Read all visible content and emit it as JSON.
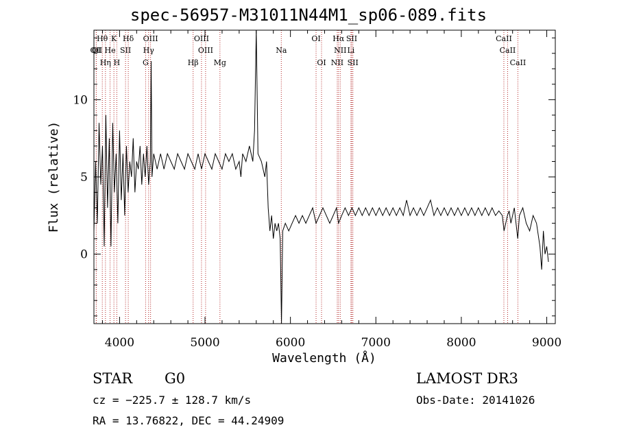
{
  "chart_data": {
    "type": "line",
    "title": "spec-56957-M31011N44M1_sp06-089.fits",
    "xlabel": "Wavelength (Å)",
    "ylabel": "Flux (relative)",
    "xlim": [
      3700,
      9100
    ],
    "ylim": [
      -4.5,
      14.5
    ],
    "xticks": [
      "4000",
      "5000",
      "6000",
      "7000",
      "8000",
      "9000"
    ],
    "yticks": [
      "0",
      "5",
      "10"
    ],
    "xtick_values": [
      4000,
      5000,
      6000,
      7000,
      8000,
      9000
    ],
    "ytick_values": [
      0,
      5,
      10
    ],
    "series": [
      {
        "name": "flux",
        "points": [
          [
            3700,
            1.5
          ],
          [
            3720,
            6.0
          ],
          [
            3740,
            2.0
          ],
          [
            3760,
            8.5
          ],
          [
            3780,
            4.5
          ],
          [
            3800,
            7.0
          ],
          [
            3820,
            0.5
          ],
          [
            3840,
            9.0
          ],
          [
            3860,
            3.0
          ],
          [
            3880,
            7.5
          ],
          [
            3900,
            0.5
          ],
          [
            3920,
            8.5
          ],
          [
            3940,
            4.0
          ],
          [
            3960,
            6.5
          ],
          [
            3980,
            2.0
          ],
          [
            4000,
            8.0
          ],
          [
            4020,
            3.5
          ],
          [
            4040,
            6.5
          ],
          [
            4060,
            2.5
          ],
          [
            4080,
            7.0
          ],
          [
            4100,
            4.0
          ],
          [
            4120,
            6.0
          ],
          [
            4140,
            5.0
          ],
          [
            4160,
            7.5
          ],
          [
            4180,
            4.0
          ],
          [
            4200,
            6.0
          ],
          [
            4220,
            5.5
          ],
          [
            4240,
            7.0
          ],
          [
            4260,
            4.5
          ],
          [
            4280,
            6.5
          ],
          [
            4300,
            5.0
          ],
          [
            4320,
            7.0
          ],
          [
            4340,
            4.5
          ],
          [
            4360,
            6.0
          ],
          [
            4370,
            12.5
          ],
          [
            4380,
            5.0
          ],
          [
            4400,
            6.5
          ],
          [
            4440,
            5.5
          ],
          [
            4480,
            6.5
          ],
          [
            4520,
            5.5
          ],
          [
            4560,
            6.5
          ],
          [
            4600,
            6.0
          ],
          [
            4640,
            5.5
          ],
          [
            4680,
            6.5
          ],
          [
            4720,
            6.0
          ],
          [
            4760,
            5.5
          ],
          [
            4800,
            6.5
          ],
          [
            4840,
            6.0
          ],
          [
            4880,
            5.5
          ],
          [
            4920,
            6.5
          ],
          [
            4960,
            5.5
          ],
          [
            5000,
            6.5
          ],
          [
            5040,
            6.0
          ],
          [
            5080,
            5.5
          ],
          [
            5120,
            6.5
          ],
          [
            5160,
            6.0
          ],
          [
            5200,
            5.5
          ],
          [
            5240,
            6.5
          ],
          [
            5280,
            6.0
          ],
          [
            5320,
            6.5
          ],
          [
            5360,
            5.5
          ],
          [
            5400,
            6.0
          ],
          [
            5420,
            5.0
          ],
          [
            5440,
            6.5
          ],
          [
            5480,
            6.0
          ],
          [
            5520,
            7.0
          ],
          [
            5560,
            6.0
          ],
          [
            5580,
            8.0
          ],
          [
            5600,
            14.5
          ],
          [
            5620,
            6.5
          ],
          [
            5660,
            6.0
          ],
          [
            5700,
            5.0
          ],
          [
            5720,
            6.0
          ],
          [
            5740,
            3.0
          ],
          [
            5760,
            1.5
          ],
          [
            5780,
            2.5
          ],
          [
            5800,
            1.0
          ],
          [
            5820,
            2.0
          ],
          [
            5840,
            1.5
          ],
          [
            5860,
            2.0
          ],
          [
            5880,
            1.0
          ],
          [
            5895,
            -4.5
          ],
          [
            5910,
            1.5
          ],
          [
            5940,
            2.0
          ],
          [
            5980,
            1.5
          ],
          [
            6020,
            2.0
          ],
          [
            6060,
            2.5
          ],
          [
            6100,
            2.0
          ],
          [
            6140,
            2.5
          ],
          [
            6180,
            2.0
          ],
          [
            6220,
            2.5
          ],
          [
            6260,
            3.0
          ],
          [
            6300,
            2.0
          ],
          [
            6340,
            2.5
          ],
          [
            6380,
            3.0
          ],
          [
            6420,
            2.5
          ],
          [
            6460,
            2.0
          ],
          [
            6500,
            2.5
          ],
          [
            6540,
            3.0
          ],
          [
            6563,
            2.0
          ],
          [
            6600,
            2.5
          ],
          [
            6640,
            3.0
          ],
          [
            6680,
            2.5
          ],
          [
            6720,
            3.0
          ],
          [
            6760,
            2.5
          ],
          [
            6800,
            3.0
          ],
          [
            6840,
            2.5
          ],
          [
            6880,
            3.0
          ],
          [
            6920,
            2.5
          ],
          [
            6960,
            3.0
          ],
          [
            7000,
            2.5
          ],
          [
            7040,
            3.0
          ],
          [
            7080,
            2.5
          ],
          [
            7120,
            3.0
          ],
          [
            7160,
            2.5
          ],
          [
            7200,
            3.0
          ],
          [
            7240,
            2.5
          ],
          [
            7280,
            3.0
          ],
          [
            7320,
            2.5
          ],
          [
            7360,
            3.5
          ],
          [
            7400,
            2.5
          ],
          [
            7440,
            3.0
          ],
          [
            7480,
            2.5
          ],
          [
            7520,
            3.0
          ],
          [
            7560,
            2.5
          ],
          [
            7600,
            3.0
          ],
          [
            7640,
            3.5
          ],
          [
            7680,
            2.5
          ],
          [
            7720,
            3.0
          ],
          [
            7760,
            2.5
          ],
          [
            7800,
            3.0
          ],
          [
            7840,
            2.5
          ],
          [
            7880,
            3.0
          ],
          [
            7920,
            2.5
          ],
          [
            7960,
            3.0
          ],
          [
            8000,
            2.5
          ],
          [
            8040,
            3.0
          ],
          [
            8080,
            2.5
          ],
          [
            8120,
            3.0
          ],
          [
            8160,
            2.5
          ],
          [
            8200,
            3.0
          ],
          [
            8240,
            2.5
          ],
          [
            8280,
            3.0
          ],
          [
            8320,
            2.5
          ],
          [
            8360,
            3.0
          ],
          [
            8400,
            2.5
          ],
          [
            8440,
            2.8
          ],
          [
            8480,
            2.5
          ],
          [
            8500,
            1.5
          ],
          [
            8520,
            2.0
          ],
          [
            8540,
            2.5
          ],
          [
            8560,
            2.8
          ],
          [
            8580,
            2.0
          ],
          [
            8600,
            2.5
          ],
          [
            8620,
            3.0
          ],
          [
            8640,
            2.0
          ],
          [
            8660,
            1.0
          ],
          [
            8680,
            2.5
          ],
          [
            8720,
            3.0
          ],
          [
            8760,
            2.0
          ],
          [
            8800,
            1.5
          ],
          [
            8840,
            2.5
          ],
          [
            8880,
            2.0
          ],
          [
            8920,
            0.5
          ],
          [
            8940,
            -1.0
          ],
          [
            8960,
            1.5
          ],
          [
            8980,
            0.0
          ],
          [
            9000,
            0.5
          ],
          [
            9020,
            -0.5
          ]
        ]
      }
    ],
    "annotations": [
      {
        "label": "Hθ",
        "wavelength": 3798,
        "row": 1
      },
      {
        "label": "OII",
        "wavelength": 3727,
        "row": 2
      },
      {
        "label": "K",
        "wavelength": 3934,
        "row": 1
      },
      {
        "label": "Hδ",
        "wavelength": 4102,
        "row": 1
      },
      {
        "label": "OIII",
        "wavelength": 4363,
        "row": 1
      },
      {
        "label": "OIII",
        "wavelength": 4959,
        "row": 1
      },
      {
        "label": "OI",
        "wavelength": 6300,
        "row": 1
      },
      {
        "label": "Hα",
        "wavelength": 6563,
        "row": 1
      },
      {
        "label": "SII",
        "wavelength": 6717,
        "row": 1
      },
      {
        "label": "CaII",
        "wavelength": 8498,
        "row": 1
      },
      {
        "label": "OI",
        "wavelength": 3728,
        "row": 2
      },
      {
        "label": "He",
        "wavelength": 3889,
        "row": 2
      },
      {
        "label": "SII",
        "wavelength": 4070,
        "row": 2
      },
      {
        "label": "Hγ",
        "wavelength": 4340,
        "row": 2
      },
      {
        "label": "OIII",
        "wavelength": 5007,
        "row": 2
      },
      {
        "label": "Na",
        "wavelength": 5893,
        "row": 2
      },
      {
        "label": "NII",
        "wavelength": 6583,
        "row": 2
      },
      {
        "label": "Li",
        "wavelength": 6708,
        "row": 2
      },
      {
        "label": "CaII",
        "wavelength": 8542,
        "row": 2
      },
      {
        "label": "Hη",
        "wavelength": 3835,
        "row": 3
      },
      {
        "label": "H",
        "wavelength": 3968,
        "row": 3
      },
      {
        "label": "G",
        "wavelength": 4305,
        "row": 3
      },
      {
        "label": "Hβ",
        "wavelength": 4861,
        "row": 3
      },
      {
        "label": "Mg",
        "wavelength": 5175,
        "row": 3
      },
      {
        "label": "OI",
        "wavelength": 6364,
        "row": 3
      },
      {
        "label": "NII",
        "wavelength": 6548,
        "row": 3
      },
      {
        "label": "SII",
        "wavelength": 6731,
        "row": 3
      },
      {
        "label": "CaII",
        "wavelength": 8662,
        "row": 3
      }
    ],
    "line_color": "#000000",
    "marker_color": "#b22222"
  },
  "info": {
    "class": "STAR",
    "subclass": "G0",
    "survey": "LAMOST DR3",
    "cz": "cz = −225.7 ± 128.7 km/s",
    "obs_date": "Obs-Date: 20141026",
    "coords": "RA =  13.76822, DEC =  44.24909"
  }
}
